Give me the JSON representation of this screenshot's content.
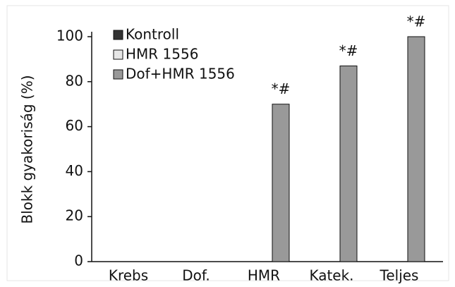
{
  "chart_data": {
    "type": "bar",
    "ylabel": "Blokk gyakoriság (%)",
    "categories": [
      "Krebs",
      "Dof.",
      "HMR",
      "Katek.",
      "Teljes"
    ],
    "series": [
      {
        "name": "Kontroll",
        "color": "#333333",
        "values": [
          0,
          0,
          0,
          0,
          0
        ]
      },
      {
        "name": "HMR 1556",
        "color": "#e6e6e6",
        "values": [
          0,
          0,
          0,
          0,
          0
        ]
      },
      {
        "name": "Dof+HMR 1556",
        "color": "#999999",
        "values": [
          0,
          0,
          70,
          87,
          100
        ]
      }
    ],
    "annotations": [
      "*#",
      "*#",
      "*#"
    ],
    "ylim": [
      0,
      100
    ],
    "yticks": [
      0,
      20,
      40,
      60,
      80,
      100
    ],
    "grid": false,
    "legend": "upper left"
  }
}
